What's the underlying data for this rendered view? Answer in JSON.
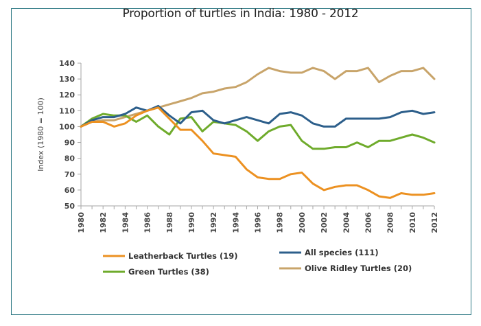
{
  "chart_data": {
    "type": "line",
    "title": "Proportion of turtles in India: 1980 - 2012",
    "xlabel": "",
    "ylabel": "Index (1980 = 100)",
    "ylim": [
      50,
      140
    ],
    "yticks": [
      50,
      60,
      70,
      80,
      90,
      100,
      110,
      120,
      130,
      140
    ],
    "xlim": [
      1980,
      2012
    ],
    "xticks": [
      1980,
      1982,
      1984,
      1986,
      1988,
      1990,
      1992,
      1994,
      1996,
      1998,
      2000,
      2002,
      2004,
      2006,
      2008,
      2010,
      2012
    ],
    "grid": false,
    "legend_position": "bottom",
    "x": [
      1980,
      1981,
      1982,
      1983,
      1984,
      1985,
      1986,
      1987,
      1988,
      1989,
      1990,
      1991,
      1992,
      1993,
      1994,
      1995,
      1996,
      1997,
      1998,
      1999,
      2000,
      2001,
      2002,
      2003,
      2004,
      2005,
      2006,
      2007,
      2008,
      2009,
      2010,
      2011,
      2012
    ],
    "series": [
      {
        "name": "Olive Ridley Turtles (20)",
        "color": "#c8a46a",
        "values": [
          100,
          103,
          104,
          104,
          106,
          108,
          110,
          112,
          114,
          116,
          118,
          121,
          122,
          124,
          125,
          128,
          133,
          137,
          135,
          134,
          134,
          137,
          135,
          130,
          135,
          135,
          137,
          128,
          132,
          135,
          135,
          137,
          130
        ]
      },
      {
        "name": "Green Turtles (38)",
        "color": "#6fab2c",
        "values": [
          100,
          105,
          108,
          107,
          107,
          103,
          107,
          100,
          95,
          105,
          106,
          97,
          103,
          102,
          101,
          97,
          91,
          97,
          100,
          101,
          91,
          86,
          86,
          87,
          87,
          90,
          87,
          91,
          91,
          93,
          95,
          93,
          90
        ]
      },
      {
        "name": "All species (111)",
        "color": "#2d5f8b",
        "values": [
          100,
          104,
          106,
          106,
          108,
          112,
          110,
          113,
          107,
          102,
          109,
          110,
          104,
          102,
          104,
          106,
          104,
          102,
          108,
          109,
          107,
          102,
          100,
          100,
          105,
          105,
          105,
          105,
          106,
          109,
          110,
          108,
          109
        ]
      },
      {
        "name": "Leatherback Turtles (19)",
        "color": "#ec9121",
        "values": [
          100,
          103,
          103,
          100,
          102,
          107,
          110,
          112,
          105,
          98,
          98,
          91,
          83,
          82,
          81,
          73,
          68,
          67,
          67,
          70,
          71,
          64,
          60,
          62,
          63,
          63,
          60,
          56,
          55,
          58,
          57,
          57,
          58
        ]
      }
    ],
    "legend": [
      {
        "series": 3,
        "label": "Leatherback Turtles (19)"
      },
      {
        "series": 2,
        "label": "All species (111)"
      },
      {
        "series": 1,
        "label": "Green Turtles (38)"
      },
      {
        "series": 0,
        "label": "Olive Ridley Turtles (20)"
      }
    ]
  },
  "colors": {
    "frame_border": "#2a7682",
    "axis": "#a6a6a6"
  }
}
